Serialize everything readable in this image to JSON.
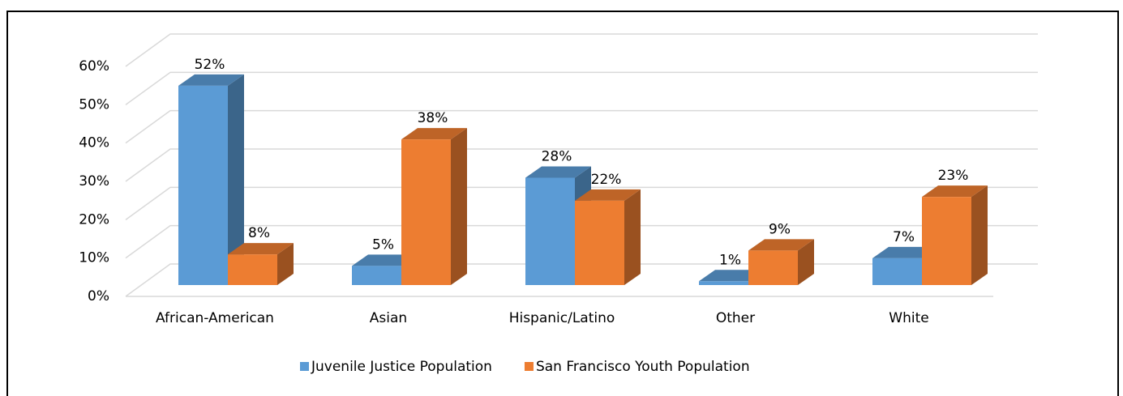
{
  "chart_data": {
    "type": "bar",
    "categories": [
      "African-American",
      "Asian",
      "Hispanic/Latino",
      "Other",
      "White"
    ],
    "series": [
      {
        "name": "Juvenile Justice Population",
        "color": "#5b9bd5",
        "values": [
          52,
          5,
          28,
          1,
          7
        ],
        "value_labels": [
          "52%",
          "5%",
          "28%",
          "1%",
          "7%"
        ]
      },
      {
        "name": "San Francisco Youth Population",
        "color": "#ed7d31",
        "values": [
          8,
          38,
          22,
          9,
          23
        ],
        "value_labels": [
          "8%",
          "38%",
          "22%",
          "9%",
          "23%"
        ]
      }
    ],
    "ylim": [
      0,
      60
    ],
    "yticks": [
      {
        "value": 0,
        "label": "0%"
      },
      {
        "value": 10,
        "label": "10%"
      },
      {
        "value": 20,
        "label": "20%"
      },
      {
        "value": 30,
        "label": "30%"
      },
      {
        "value": 40,
        "label": "40%"
      },
      {
        "value": 50,
        "label": "50%"
      },
      {
        "value": 60,
        "label": "60%"
      }
    ],
    "grid": true,
    "legend": "bottom"
  }
}
